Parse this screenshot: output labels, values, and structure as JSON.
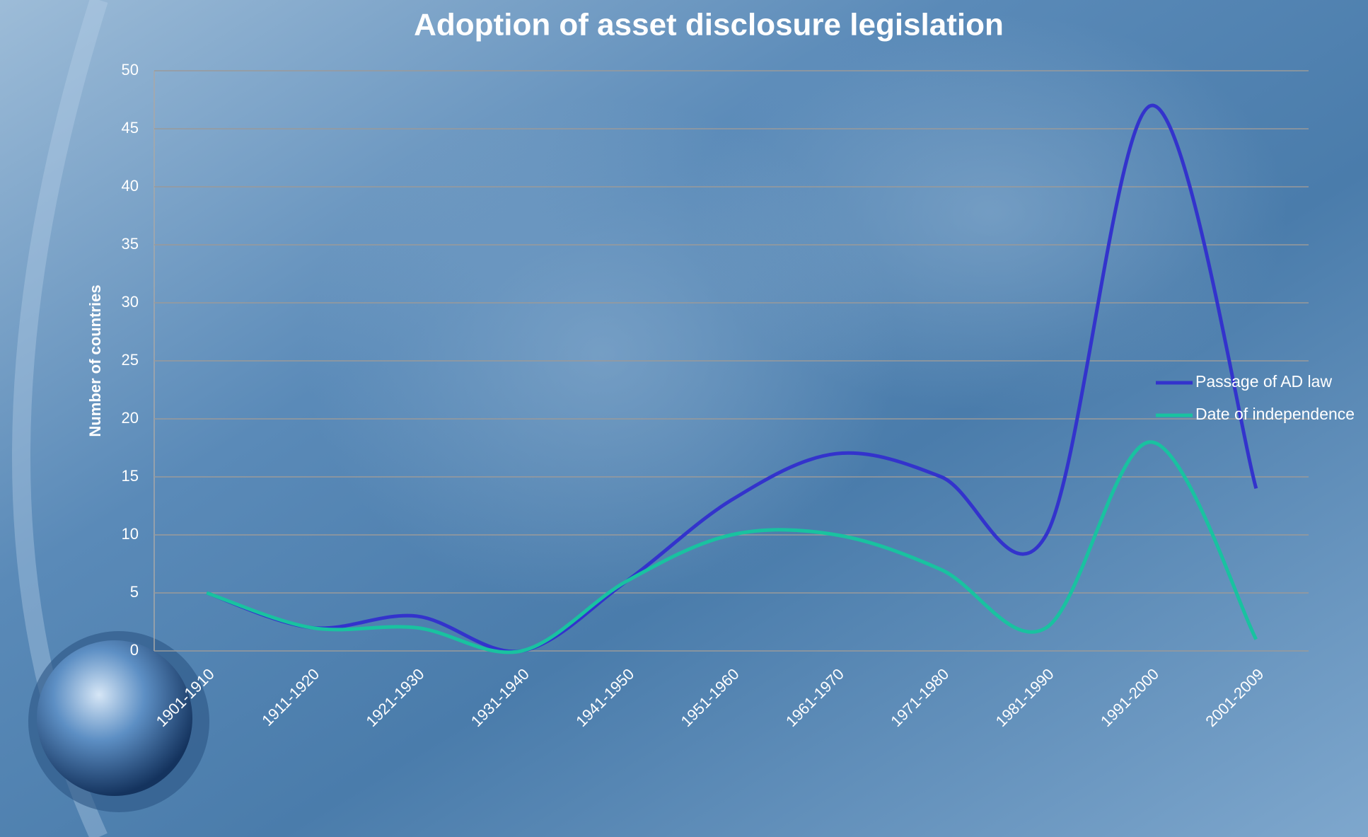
{
  "chart_data": {
    "type": "line",
    "title": "Adoption of asset disclosure legislation",
    "y_label": "Number of countries",
    "categories": [
      "1901-1910",
      "1911-1920",
      "1921-1930",
      "1931-1940",
      "1941-1950",
      "1951-1960",
      "1961-1970",
      "1971-1980",
      "1981-1990",
      "1991-2000",
      "2001-2009"
    ],
    "series": [
      {
        "name": "Passage of AD law",
        "color": "#3333cc",
        "values": [
          5,
          2,
          3,
          0,
          6,
          13,
          17,
          15,
          10,
          47,
          14
        ]
      },
      {
        "name": "Date of independence",
        "color": "#19c2a0",
        "values": [
          5,
          2,
          2,
          0,
          6,
          10,
          10,
          7,
          2,
          18,
          1
        ]
      }
    ],
    "ylim": [
      0,
      50
    ],
    "yticks": [
      0,
      5,
      10,
      15,
      20,
      25,
      30,
      35,
      40,
      45,
      50
    ],
    "grid": true,
    "smooth": true,
    "legend": "right"
  }
}
